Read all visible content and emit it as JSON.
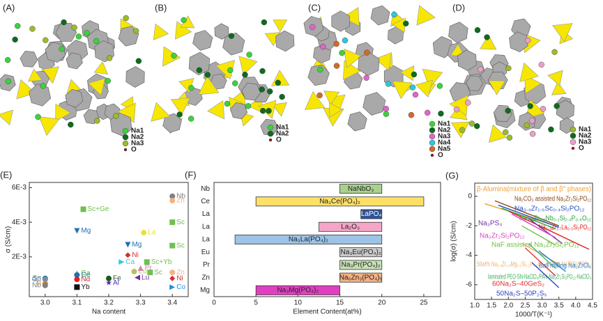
{
  "panels": [
    {
      "letter": "(A)",
      "legend": [
        {
          "name": "Na1",
          "color": "#3dd23d"
        },
        {
          "name": "Na2",
          "color": "#0f6b1f"
        },
        {
          "name": "Na3",
          "color": "#9bbb2b"
        },
        {
          "name": "O",
          "color": "#8b1a1a"
        }
      ]
    },
    {
      "letter": "(B)",
      "legend": [
        {
          "name": "Na1",
          "color": "#3dd23d"
        },
        {
          "name": "Na2",
          "color": "#0f6b1f"
        },
        {
          "name": "O",
          "color": "#8b1a1a"
        }
      ]
    },
    {
      "letter": "(C)",
      "legend": [
        {
          "name": "Na1",
          "color": "#3dd23d"
        },
        {
          "name": "Na2",
          "color": "#0f6b1f"
        },
        {
          "name": "Na3",
          "color": "#e066c8"
        },
        {
          "name": "Na4",
          "color": "#2ec8d8"
        },
        {
          "name": "Na5",
          "color": "#d46a2a"
        },
        {
          "name": "O",
          "color": "#8b1a1a"
        }
      ]
    },
    {
      "letter": "(D)",
      "legend": [
        {
          "name": "Na1",
          "color": "#9bbb2b"
        },
        {
          "name": "Na2",
          "color": "#0f6b1f"
        },
        {
          "name": "Na3",
          "color": "#e8a0c8"
        },
        {
          "name": "O",
          "color": "#c01010"
        }
      ]
    }
  ],
  "chart_data": [
    {
      "type": "scatter",
      "letter": "(E)",
      "xlabel": "Na content",
      "ylabel": "σ (S/cm)",
      "xlim": [
        2.95,
        3.45
      ],
      "xticks": [
        {
          "value": 3.0,
          "label": "3.0"
        },
        3.1,
        3.2,
        3.3,
        3.4
      ],
      "ylim": [
        -0.0003,
        0.0063
      ],
      "yticks": [
        {
          "value": 0.002,
          "label": "2E-3"
        },
        {
          "value": 0.004,
          "label": "4E-3"
        },
        {
          "value": 0.006,
          "label": "6E-3"
        }
      ],
      "points": [
        {
          "label": "Nb",
          "x": 3.4,
          "y": 0.0055,
          "color": "#808080",
          "marker": "circle"
        },
        {
          "label": "Zn",
          "x": 3.4,
          "y": 0.00525,
          "color": "#f4b183",
          "marker": "circle"
        },
        {
          "label": "Sc+Ge",
          "x": 3.12,
          "y": 0.00475,
          "color": "#70c050",
          "marker": "square"
        },
        {
          "label": "Sc",
          "x": 3.4,
          "y": 0.004,
          "color": "#70c050",
          "marker": "square"
        },
        {
          "label": "Mg",
          "x": 3.1,
          "y": 0.0035,
          "color": "#1f6fb4",
          "marker": "tri-down"
        },
        {
          "label": "La",
          "x": 3.31,
          "y": 0.0034,
          "color": "#e8e040",
          "marker": "circle"
        },
        {
          "label": "Sc",
          "x": 3.4,
          "y": 0.00265,
          "color": "#70c050",
          "marker": "square"
        },
        {
          "label": "Mg",
          "x": 3.26,
          "y": 0.0027,
          "color": "#1f6fb4",
          "marker": "tri-down"
        },
        {
          "label": "Ni",
          "x": 3.26,
          "y": 0.0021,
          "color": "#d03030",
          "marker": "diamond"
        },
        {
          "label": "Ca",
          "x": 3.24,
          "y": 0.0017,
          "color": "#30c8e8",
          "marker": "tri-right"
        },
        {
          "label": "Sc+Yb",
          "x": 3.32,
          "y": 0.0017,
          "color": "#70c050",
          "marker": "square"
        },
        {
          "label": "Pr",
          "x": 3.3,
          "y": 0.00135,
          "color": "#e070c0",
          "marker": "tri-up"
        },
        {
          "label": "Eu",
          "x": 3.28,
          "y": 0.00115,
          "color": "#b8c060",
          "marker": "circle"
        },
        {
          "label": "Sc",
          "x": 3.33,
          "y": 0.0011,
          "color": "#70c050",
          "marker": "square"
        },
        {
          "label": "Zn",
          "x": 3.4,
          "y": 0.0011,
          "color": "#f4b183",
          "marker": "circle"
        },
        {
          "label": "Ni",
          "x": 3.4,
          "y": 0.00075,
          "color": "#d03030",
          "marker": "diamond"
        },
        {
          "label": "Ga",
          "x": 3.1,
          "y": 0.00105,
          "color": "#60c020",
          "marker": "tri-up"
        },
        {
          "label": "Ce",
          "x": 3.1,
          "y": 0.00095,
          "color": "#1f6fb4",
          "marker": "circle"
        },
        {
          "label": "Nd",
          "x": 3.1,
          "y": 0.0007,
          "color": "#e02020",
          "marker": "circle"
        },
        {
          "label": "Fe",
          "x": 3.2,
          "y": 0.00075,
          "color": "#1a5a1a",
          "marker": "circle"
        },
        {
          "label": "Lu",
          "x": 3.29,
          "y": 0.0008,
          "color": "#7030a0",
          "marker": "tri-left"
        },
        {
          "label": "Al",
          "x": 3.2,
          "y": 0.0005,
          "color": "#5030c0",
          "marker": "star"
        },
        {
          "label": "Yb",
          "x": 3.1,
          "y": 0.00025,
          "color": "#111111",
          "marker": "square"
        },
        {
          "label": "Co",
          "x": 3.4,
          "y": 0.00025,
          "color": "#2090e0",
          "marker": "tri-right"
        },
        {
          "label": "Sn",
          "x": 3.0,
          "y": 0.00075,
          "color": "#1a6a8a",
          "marker": "circle"
        },
        {
          "label": "Gd",
          "x": 3.0,
          "y": 0.0007,
          "color": "#7090b0",
          "marker": "circle"
        },
        {
          "label": "Ti",
          "x": 3.0,
          "y": 0.00045,
          "color": "#e08020",
          "marker": "circle"
        },
        {
          "label": "Nb",
          "x": 3.0,
          "y": 0.00035,
          "color": "#808080",
          "marker": "circle"
        }
      ]
    },
    {
      "type": "range-bar",
      "letter": "(F)",
      "xlabel": "Element Content(at%)",
      "xlim": [
        0,
        27
      ],
      "xticks": [
        0,
        5,
        10,
        15,
        20,
        25
      ],
      "categories": [
        "Nb",
        "Ce",
        "La",
        "La",
        "La",
        "Eu",
        "Pr",
        "Zn",
        "Mg"
      ],
      "bars": [
        {
          "name": "NaNbO₃",
          "start": 15,
          "end": 20,
          "color": "#a9d18e"
        },
        {
          "name": "Na₃Ce(PO₄)₂",
          "start": 5,
          "end": 25,
          "color": "#ffe066"
        },
        {
          "name": "LaPO₄",
          "start": 17.5,
          "end": 20,
          "color": "#2f5597"
        },
        {
          "name": "La₂O₃",
          "start": 12.5,
          "end": 20,
          "color": "#f4a6c8"
        },
        {
          "name": "Na₃La(PO₄)₂",
          "start": 2.5,
          "end": 20,
          "color": "#9dc3e6"
        },
        {
          "name": "Na₃Eu(PO₄)₂",
          "start": 15,
          "end": 20,
          "color": "#c9c9c9"
        },
        {
          "name": "Na₃Pr(PO₄)₂",
          "start": 15,
          "end": 20,
          "color": "#c5e0b4"
        },
        {
          "name": "Na₆Zn₃(PO₄)₅",
          "start": 15,
          "end": 20,
          "color": "#f4b183"
        },
        {
          "name": "Na₃Mg(PO₄)₂",
          "start": 5,
          "end": 15,
          "color": "#e040c0"
        }
      ]
    },
    {
      "type": "line",
      "letter": "(G)",
      "xlabel": "1000/T(K⁻¹)",
      "ylabel": "log(σ) (S/cm)",
      "xlim": [
        1.0,
        4.5
      ],
      "xticks": [
        {
          "value": 1.0,
          "label": "1.0"
        },
        1.5,
        {
          "value": 2.0,
          "label": "2.0"
        },
        2.5,
        {
          "value": 3.0,
          "label": "3.0"
        },
        3.5,
        {
          "value": 4.0,
          "label": "4.0"
        },
        4.5
      ],
      "ylim": [
        -7,
        0.9
      ],
      "yticks": [
        0,
        -2,
        -4,
        -6
      ],
      "series": [
        {
          "name": "β-Alumina(mixture of β and β'' phases)",
          "color": "#f0a030",
          "x": [
            1.3,
            3.4
          ],
          "values": [
            -0.5,
            -2.0
          ]
        },
        {
          "name": "Na₂CO₃ assisted Na₃Zr₂Si₂PO₁₂",
          "color": "#8b4513",
          "x": [
            1.6,
            3.5
          ],
          "values": [
            -0.3,
            -2.0
          ]
        },
        {
          "name": "Na₃.₄Zr₁.₆Sc₀.₄Si₂PO₁₂",
          "color": "#2050c0",
          "x": [
            1.7,
            3.5
          ],
          "values": [
            -0.6,
            -2.1
          ]
        },
        {
          "name": "Na₃.₃Zr₁.₉Nb₀.₁Si₂.₄P₀.₆O₁₂",
          "color": "#20a040",
          "x": [
            1.8,
            3.4
          ],
          "values": [
            -0.8,
            -2.2
          ]
        },
        {
          "name": "Na₃.₃Zr₁.₇La₀.₃Si₂PO₁₂",
          "color": "#e02020",
          "x": [
            2.0,
            4.4
          ],
          "values": [
            -1.0,
            -3.6
          ]
        },
        {
          "name": "Na₃PS₄",
          "color": "#7030a0",
          "x": [
            2.6,
            3.6
          ],
          "values": [
            -1.5,
            -3.2
          ]
        },
        {
          "name": "Na₃Zr₂Si₂PO₁₂",
          "color": "#e040c0",
          "x": [
            2.1,
            3.4
          ],
          "values": [
            -1.2,
            -2.8
          ]
        },
        {
          "name": "NaF assisted Na₃Zr₂Si₂PO₁₂",
          "color": "#70c040",
          "x": [
            2.4,
            3.4
          ],
          "values": [
            -2.0,
            -3.3
          ]
        },
        {
          "name": "50wt% Na₃.₄Zr₁.₉Mg₀.₁Si₂.₂P₀.₈O₁₂–50wt% NaTFSI-PEO₁₆",
          "color": "#f0b070",
          "x": [
            2.4,
            3.5
          ],
          "values": [
            -3.2,
            -4.6
          ]
        },
        {
          "name": "Ball milling Na₂ZrCl₆",
          "color": "#2080d0",
          "x": [
            2.9,
            3.7
          ],
          "values": [
            -3.7,
            -5.1
          ]
        },
        {
          "name": "laminated PEO-SN-NaClO₄/PAN-Na₃Zr₂Si₂PO₁₂-NaClO₄",
          "color": "#40b060",
          "x": [
            2.6,
            3.4
          ],
          "values": [
            -3.2,
            -4.9
          ]
        },
        {
          "name": "60Na₂S–40GeS₂",
          "color": "#e03030",
          "x": [
            2.5,
            3.4
          ],
          "values": [
            -3.5,
            -5.4
          ]
        },
        {
          "name": "50Na₂S–50P₂S₅",
          "color": "#3040c0",
          "x": [
            2.7,
            3.5
          ],
          "values": [
            -4.5,
            -6.2
          ]
        }
      ]
    }
  ]
}
